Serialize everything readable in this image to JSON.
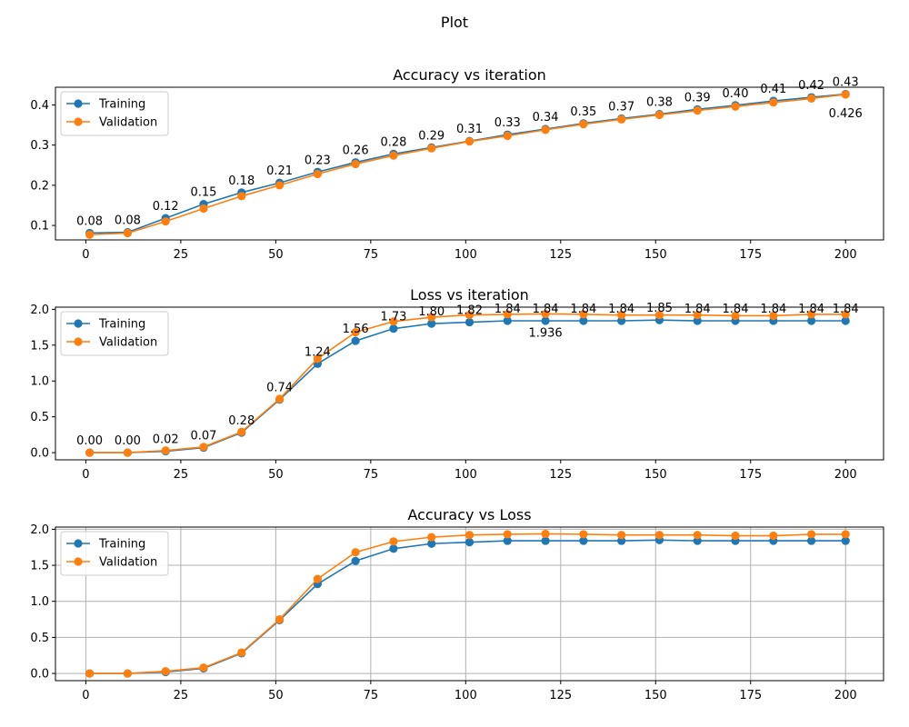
{
  "figure": {
    "suptitle": "Plot"
  },
  "colors": {
    "training": "#1f77b4",
    "validation": "#ff7f0e",
    "grid": "#b0b0b0"
  },
  "chart_data": [
    {
      "type": "line",
      "title": "Accuracy vs iteration",
      "xlabel": "",
      "ylabel": "",
      "xlim": [
        -8,
        210
      ],
      "ylim": [
        0.064,
        0.444
      ],
      "xticks": [
        0,
        25,
        50,
        75,
        100,
        125,
        150,
        175,
        200
      ],
      "yticks": [
        0.1,
        0.2,
        0.3,
        0.4
      ],
      "ytick_labels": [
        "0.1",
        "0.2",
        "0.3",
        "0.4"
      ],
      "grid": false,
      "legend": "upper-left",
      "x": [
        1,
        11,
        21,
        31,
        41,
        51,
        61,
        71,
        81,
        91,
        101,
        111,
        121,
        131,
        141,
        151,
        161,
        171,
        181,
        191,
        200
      ],
      "series": [
        {
          "name": "Training",
          "values": [
            0.081,
            0.083,
            0.118,
            0.153,
            0.182,
            0.206,
            0.233,
            0.257,
            0.278,
            0.294,
            0.31,
            0.326,
            0.34,
            0.354,
            0.366,
            0.377,
            0.389,
            0.399,
            0.41,
            0.419,
            0.427
          ]
        },
        {
          "name": "Validation",
          "values": [
            0.077,
            0.081,
            0.11,
            0.142,
            0.173,
            0.2,
            0.228,
            0.253,
            0.274,
            0.292,
            0.309,
            0.323,
            0.338,
            0.352,
            0.364,
            0.375,
            0.386,
            0.396,
            0.406,
            0.416,
            0.426
          ]
        }
      ],
      "data_labels": [
        "0.08",
        "0.08",
        "0.12",
        "0.15",
        "0.18",
        "0.21",
        "0.23",
        "0.26",
        "0.28",
        "0.29",
        "0.31",
        "0.33",
        "0.34",
        "0.35",
        "0.37",
        "0.38",
        "0.39",
        "0.40",
        "0.41",
        "0.42",
        "0.43"
      ],
      "annotations": [
        {
          "text": "0.426",
          "x": 200,
          "y": 0.426
        }
      ]
    },
    {
      "type": "line",
      "title": "Loss vs iteration",
      "xlabel": "",
      "ylabel": "",
      "xlim": [
        -8,
        210
      ],
      "ylim": [
        -0.1,
        2.03
      ],
      "xticks": [
        0,
        25,
        50,
        75,
        100,
        125,
        150,
        175,
        200
      ],
      "yticks": [
        0.0,
        0.5,
        1.0,
        1.5,
        2.0
      ],
      "ytick_labels": [
        "0.0",
        "0.5",
        "1.0",
        "1.5",
        "2.0"
      ],
      "grid": false,
      "legend": "upper-left",
      "x": [
        1,
        11,
        21,
        31,
        41,
        51,
        61,
        71,
        81,
        91,
        101,
        111,
        121,
        131,
        141,
        151,
        161,
        171,
        181,
        191,
        200
      ],
      "series": [
        {
          "name": "Training",
          "values": [
            0.0,
            0.0,
            0.02,
            0.07,
            0.28,
            0.74,
            1.24,
            1.56,
            1.73,
            1.8,
            1.82,
            1.84,
            1.84,
            1.84,
            1.84,
            1.85,
            1.84,
            1.84,
            1.84,
            1.84,
            1.84
          ]
        },
        {
          "name": "Validation",
          "values": [
            0.0,
            0.0,
            0.03,
            0.08,
            0.29,
            0.75,
            1.31,
            1.68,
            1.83,
            1.89,
            1.92,
            1.93,
            1.936,
            1.93,
            1.92,
            1.92,
            1.92,
            1.91,
            1.91,
            1.93,
            1.93
          ]
        }
      ],
      "data_labels": [
        "0.00",
        "0.00",
        "0.02",
        "0.07",
        "0.28",
        "0.74",
        "1.24",
        "1.56",
        "1.73",
        "1.80",
        "1.82",
        "1.84",
        "1.84",
        "1.84",
        "1.84",
        "1.85",
        "1.84",
        "1.84",
        "1.84",
        "1.84",
        "1.84"
      ],
      "annotations": [
        {
          "text": "1.936",
          "x": 121,
          "y": 1.936
        }
      ]
    },
    {
      "type": "line",
      "title": "Accuracy vs Loss",
      "xlabel": "",
      "ylabel": "",
      "xlim": [
        -8,
        210
      ],
      "ylim": [
        -0.1,
        2.03
      ],
      "xticks": [
        0,
        25,
        50,
        75,
        100,
        125,
        150,
        175,
        200
      ],
      "yticks": [
        0.0,
        0.5,
        1.0,
        1.5,
        2.0
      ],
      "ytick_labels": [
        "0.0",
        "0.5",
        "1.0",
        "1.5",
        "2.0"
      ],
      "grid": true,
      "legend": "upper-left",
      "x": [
        1,
        11,
        21,
        31,
        41,
        51,
        61,
        71,
        81,
        91,
        101,
        111,
        121,
        131,
        141,
        151,
        161,
        171,
        181,
        191,
        200
      ],
      "series": [
        {
          "name": "Training",
          "values": [
            0.0,
            0.0,
            0.02,
            0.07,
            0.28,
            0.74,
            1.24,
            1.56,
            1.73,
            1.8,
            1.82,
            1.84,
            1.84,
            1.84,
            1.84,
            1.85,
            1.84,
            1.84,
            1.84,
            1.84,
            1.84
          ]
        },
        {
          "name": "Validation",
          "values": [
            0.0,
            0.0,
            0.03,
            0.08,
            0.29,
            0.75,
            1.31,
            1.68,
            1.83,
            1.89,
            1.92,
            1.93,
            1.936,
            1.93,
            1.92,
            1.92,
            1.92,
            1.91,
            1.91,
            1.93,
            1.93
          ]
        }
      ],
      "data_labels": [],
      "annotations": []
    }
  ]
}
